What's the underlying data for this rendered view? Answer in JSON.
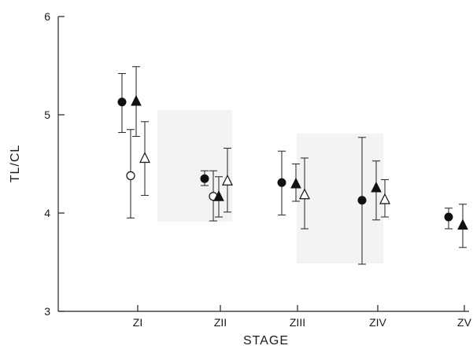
{
  "chart_data": {
    "type": "scatter",
    "xlabel": "STAGE",
    "ylabel": "TL/CL",
    "categories": [
      "ZI",
      "ZII",
      "ZIII",
      "ZIV",
      "ZV"
    ],
    "ylim": [
      3,
      6
    ],
    "yticks": [
      "3",
      "4",
      "5",
      "6"
    ],
    "grid": false,
    "legend": "none",
    "series": [
      {
        "marker": "filled-circle",
        "points": [
          {
            "stage": "ZI",
            "y": 5.13,
            "low": 4.82,
            "high": 5.42
          },
          {
            "stage": "ZII",
            "y": 4.35,
            "low": 4.28,
            "high": 4.43
          },
          {
            "stage": "ZIII",
            "y": 4.31,
            "low": 3.98,
            "high": 4.63
          },
          {
            "stage": "ZIV",
            "y": 4.13,
            "low": 3.48,
            "high": 4.77
          },
          {
            "stage": "ZV",
            "y": 3.96,
            "low": 3.84,
            "high": 4.05
          }
        ]
      },
      {
        "marker": "open-circle",
        "points": [
          {
            "stage": "ZI",
            "y": 4.38,
            "low": 3.95,
            "high": 4.85
          },
          {
            "stage": "ZII",
            "y": 4.17,
            "low": 3.92,
            "high": 4.43
          }
        ]
      },
      {
        "marker": "filled-triangle",
        "points": [
          {
            "stage": "ZI",
            "y": 5.14,
            "low": 4.78,
            "high": 5.49
          },
          {
            "stage": "ZII",
            "y": 4.17,
            "low": 3.96,
            "high": 4.37
          },
          {
            "stage": "ZIII",
            "y": 4.3,
            "low": 4.12,
            "high": 4.5
          },
          {
            "stage": "ZIV",
            "y": 4.26,
            "low": 3.93,
            "high": 4.53
          },
          {
            "stage": "ZV",
            "y": 3.88,
            "low": 3.65,
            "high": 4.09
          }
        ]
      },
      {
        "marker": "open-triangle",
        "points": [
          {
            "stage": "ZI",
            "y": 4.56,
            "low": 4.18,
            "high": 4.93
          },
          {
            "stage": "ZII",
            "y": 4.33,
            "low": 4.01,
            "high": 4.66
          },
          {
            "stage": "ZIII",
            "y": 4.19,
            "low": 3.84,
            "high": 4.56
          },
          {
            "stage": "ZIV",
            "y": 4.14,
            "low": 3.96,
            "high": 4.34
          }
        ]
      }
    ]
  }
}
